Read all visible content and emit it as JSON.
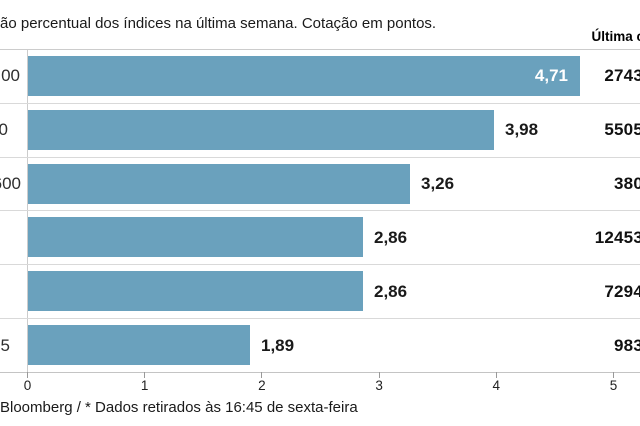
{
  "header": {
    "subtitle": "ão percentual dos índices na última semana. Cotação em pontos.",
    "last_quote_column_header": "Última c"
  },
  "footer": {
    "source": "Bloomberg / * Dados retirados às 16:45 de sexta-feira"
  },
  "chart_data": {
    "type": "bar",
    "orientation": "horizontal",
    "title": "ão percentual dos índices na última semana. Cotação em pontos.",
    "categories": [
      "00",
      "0",
      "600",
      "",
      "",
      "35"
    ],
    "values": [
      4.71,
      3.98,
      3.26,
      2.86,
      2.86,
      1.89
    ],
    "value_labels": [
      "4,71",
      "3,98",
      "3,26",
      "2,86",
      "2,86",
      "1,89"
    ],
    "last_quote_header": "Última c",
    "last_quotes": [
      "2743",
      "5505",
      "380",
      "12453",
      "7294",
      "983"
    ],
    "xticks": [
      "0",
      "1",
      "2",
      "3",
      "4",
      "5"
    ],
    "xlim": [
      0,
      5.2
    ],
    "grid": false,
    "legend": false,
    "bar_color": "#6AA1BD",
    "value_label_inside_color": "#ffffff",
    "separator_color": "#d9d9d9",
    "source": "Bloomberg / * Dados retirados às 16:45 de sexta-feira"
  }
}
